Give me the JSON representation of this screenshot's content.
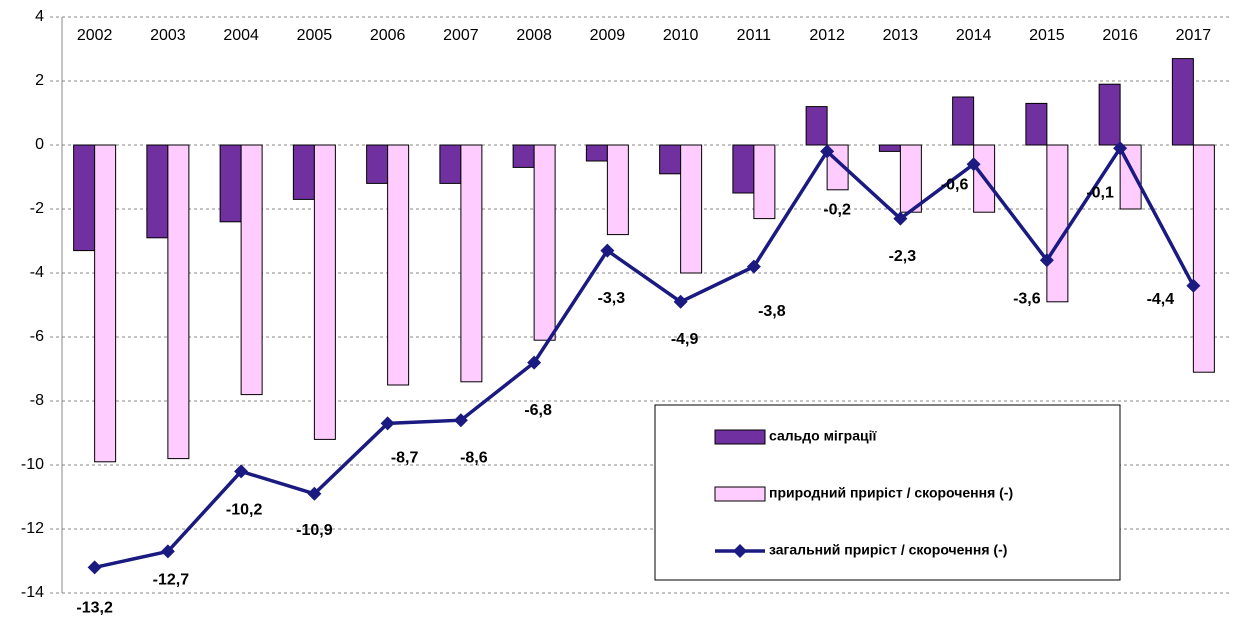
{
  "chart_data": {
    "type": "bar_line",
    "categories": [
      "2002",
      "2003",
      "2004",
      "2005",
      "2006",
      "2007",
      "2008",
      "2009",
      "2010",
      "2011",
      "2012",
      "2013",
      "2014",
      "2015",
      "2016",
      "2017"
    ],
    "series": [
      {
        "name": "сальдо міграції",
        "color": "#7030a0",
        "type": "bar",
        "values": [
          -3.3,
          -2.9,
          -2.4,
          -1.7,
          -1.2,
          -1.2,
          -0.7,
          -0.5,
          -0.9,
          -1.5,
          1.2,
          -0.2,
          1.5,
          1.3,
          1.9,
          2.7
        ]
      },
      {
        "name": "природний приріст / скорочення (-)",
        "color": "#ffccff",
        "type": "bar",
        "values": [
          -9.9,
          -9.8,
          -7.8,
          -9.2,
          -7.5,
          -7.4,
          -6.1,
          -2.8,
          -4.0,
          -2.3,
          -1.4,
          -2.1,
          -2.1,
          -4.9,
          -2.0,
          -7.1
        ]
      },
      {
        "name": "загальний приріст / скорочення (-)",
        "color": "#1a1a80",
        "type": "line",
        "values": [
          -13.2,
          -12.7,
          -10.2,
          -10.9,
          -8.7,
          -8.6,
          -6.8,
          -3.3,
          -4.9,
          -3.8,
          -0.2,
          -2.3,
          -0.6,
          -3.6,
          -0.1,
          -4.4
        ],
        "value_labels": [
          "-13,2",
          "-12,7",
          "-10,2",
          "-10,9",
          "-8,7",
          "-8,6",
          "-6,8",
          "-3,3",
          "-4,9",
          "-3,8",
          "-0,2",
          "-2,3",
          "-0,6",
          "-3,6",
          "-0,1",
          "-4,4"
        ]
      }
    ],
    "ylim": [
      -14,
      4
    ],
    "yticks": [
      -14,
      -12,
      -10,
      -8,
      -6,
      -4,
      -2,
      0,
      2,
      4
    ],
    "grid": true
  }
}
